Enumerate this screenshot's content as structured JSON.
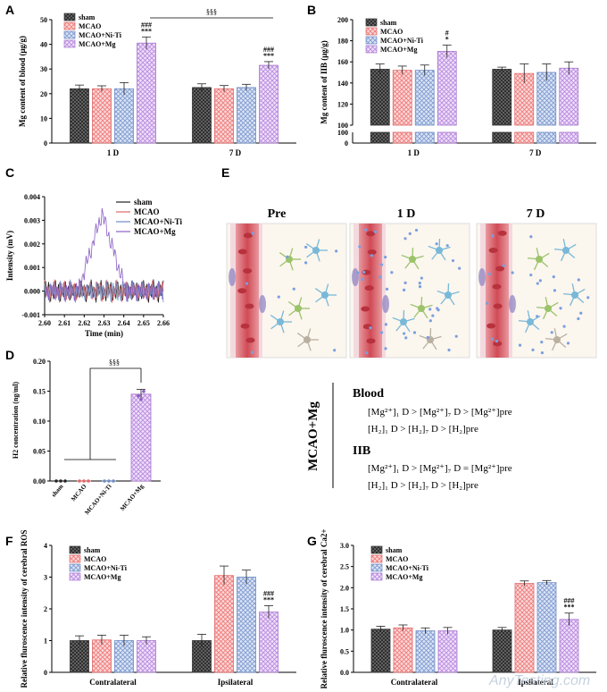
{
  "colors": {
    "sham": "#7f7f7f",
    "mcao": "#f08080",
    "niti": "#8fa8d8",
    "mg": "#c49be0",
    "vessel": "#d9707a",
    "neuron_green": "#9bc36a",
    "neuron_blue": "#78b8d8"
  },
  "legend": [
    "sham",
    "MCAO",
    "MCAO+Ni-Ti",
    "MCAO+Mg"
  ],
  "panel_letters": [
    "A",
    "B",
    "C",
    "D",
    "E",
    "F",
    "G"
  ],
  "chart_data": [
    {
      "panel": "A",
      "type": "bar",
      "categories": [
        "1 D",
        "7 D"
      ],
      "ylabel": "Mg  content of blood (μg/g)",
      "ylim": [
        0,
        50
      ],
      "yticks": [
        "0",
        "10",
        "20",
        "30",
        "40",
        "50"
      ],
      "series": [
        {
          "name": "sham",
          "values": [
            22,
            22.5
          ],
          "err": [
            1.5,
            1.5
          ]
        },
        {
          "name": "MCAO",
          "values": [
            22,
            22
          ],
          "err": [
            1.2,
            1.3
          ]
        },
        {
          "name": "MCAO+Ni-Ti",
          "values": [
            22,
            22.5
          ],
          "err": [
            2.5,
            1.3
          ]
        },
        {
          "name": "MCAO+Mg",
          "values": [
            40.5,
            31.5
          ],
          "err": [
            2.5,
            1.5
          ]
        }
      ],
      "annotations": {
        "bar_1D_mg": [
          "###",
          "***"
        ],
        "bar_7D_mg": [
          "###",
          "***"
        ],
        "bracket": "§§§"
      }
    },
    {
      "panel": "B",
      "type": "bar",
      "categories": [
        "1 D",
        "7 D"
      ],
      "ylabel": "Mg  content of IIB (μg/g)",
      "yticks": [
        "0",
        "100",
        "100",
        "120",
        "140",
        "160",
        "180",
        "200"
      ],
      "ylim_upper": [
        100,
        200
      ],
      "series": [
        {
          "name": "sham",
          "values": [
            153,
            153
          ],
          "err": [
            5,
            2
          ]
        },
        {
          "name": "MCAO",
          "values": [
            152,
            149
          ],
          "err": [
            4,
            9
          ]
        },
        {
          "name": "MCAO+Ni-Ti",
          "values": [
            152,
            150
          ],
          "err": [
            5,
            8
          ]
        },
        {
          "name": "MCAO+Mg",
          "values": [
            170,
            154
          ],
          "err": [
            6,
            6
          ]
        }
      ],
      "annotations": {
        "bar_1D_mg": [
          "#",
          "*"
        ]
      }
    },
    {
      "panel": "C",
      "type": "line",
      "xlabel": "Time (min)",
      "ylabel": "Intensity (mV)",
      "xlim": [
        2.6,
        2.66
      ],
      "ylim": [
        -0.001,
        0.004
      ],
      "xticks": [
        "2.60",
        "2.61",
        "2.62",
        "2.63",
        "2.64",
        "2.65",
        "2.66"
      ],
      "yticks": [
        "-0.001",
        "0.000",
        "0.001",
        "0.002",
        "0.003",
        "0.004"
      ],
      "peak": {
        "series": "MCAO+Mg",
        "x": 2.629,
        "y": 0.0033
      },
      "series_names": [
        "sham",
        "MCAO",
        "MCAO+Ni-Ti",
        "MCAO+Mg"
      ]
    },
    {
      "panel": "D",
      "type": "bar",
      "categories": [
        "sham",
        "MCAO",
        "MCAO+Ni-Ti",
        "MCAO+Mg"
      ],
      "ylabel": "H2 concentration (ng/ml)",
      "ylim": [
        0,
        0.2
      ],
      "yticks": [
        "0.00",
        "0.05",
        "0.10",
        "0.15",
        "0.20"
      ],
      "values": [
        0,
        0,
        0,
        0.145
      ],
      "err": [
        0,
        0,
        0,
        0.008
      ],
      "annotations": {
        "bracket": "§§§"
      }
    },
    {
      "panel": "F",
      "type": "bar",
      "categories": [
        "Contralateral",
        "Ipsilateral"
      ],
      "ylabel": "Relative fluroscence intensity of cerebral ROS",
      "ylim": [
        0,
        4
      ],
      "yticks": [
        "0",
        "1",
        "2",
        "3",
        "4"
      ],
      "series": [
        {
          "name": "sham",
          "values": [
            1.0,
            1.0
          ],
          "err": [
            0.15,
            0.2
          ]
        },
        {
          "name": "MCAO",
          "values": [
            1.02,
            3.05
          ],
          "err": [
            0.15,
            0.3
          ]
        },
        {
          "name": "MCAO+Ni-Ti",
          "values": [
            1.0,
            3.0
          ],
          "err": [
            0.17,
            0.22
          ]
        },
        {
          "name": "MCAO+Mg",
          "values": [
            1.0,
            1.9
          ],
          "err": [
            0.12,
            0.2
          ]
        }
      ],
      "annotations": {
        "bar_ipsi_mg": [
          "###",
          "***"
        ]
      }
    },
    {
      "panel": "G",
      "type": "bar",
      "categories": [
        "Contralateral",
        "Ipsilateral"
      ],
      "ylabel": "Relative fluroscence intensity of cerebral Ca2+",
      "ylim": [
        0,
        3.0
      ],
      "yticks": [
        "0.0",
        "0.5",
        "1.0",
        "1.5",
        "2.0",
        "2.5",
        "3.0"
      ],
      "series": [
        {
          "name": "sham",
          "values": [
            1.02,
            1.0
          ],
          "err": [
            0.07,
            0.06
          ]
        },
        {
          "name": "MCAO",
          "values": [
            1.05,
            2.1
          ],
          "err": [
            0.07,
            0.06
          ]
        },
        {
          "name": "MCAO+Ni-Ti",
          "values": [
            0.98,
            2.12
          ],
          "err": [
            0.07,
            0.05
          ]
        },
        {
          "name": "MCAO+Mg",
          "values": [
            0.98,
            1.25
          ],
          "err": [
            0.08,
            0.15
          ]
        }
      ],
      "annotations": {
        "bar_ipsi_mg": [
          "###",
          "***"
        ]
      }
    }
  ],
  "panel_e": {
    "titles": [
      "Pre",
      "1 D",
      "7 D"
    ],
    "group_label": "MCAO+Mg",
    "blood_heading": "Blood",
    "iib_heading": "IIB",
    "blood_line1": "[Mg²⁺]₁ D > [Mg²⁺]₇ D > [Mg²⁺]pre",
    "blood_line2": "[H₂]₁ D > [H₂]₇ D > [H₂]pre",
    "iib_line1": "[Mg²⁺]₁ D > [Mg²⁺]₇ D = [Mg²⁺]pre",
    "iib_line2": "[H₂]₁ D > [H₂]₇ D > [H₂]pre"
  },
  "watermark": "AnyTesting.com"
}
